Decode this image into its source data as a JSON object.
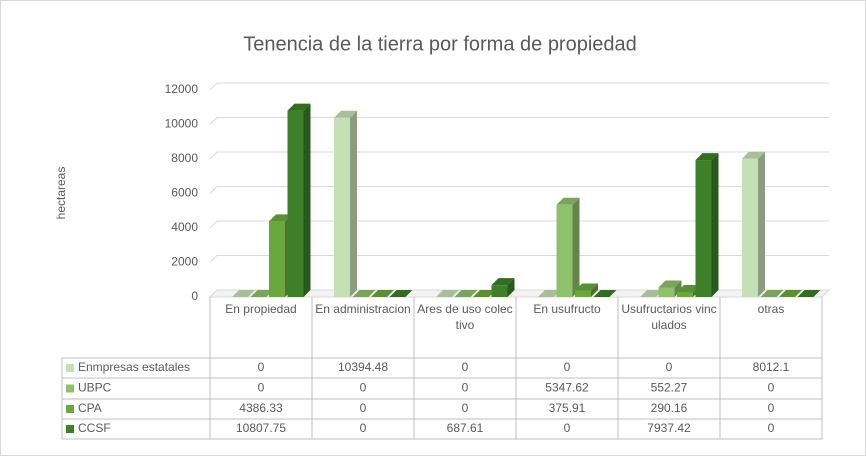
{
  "chart_data": {
    "type": "bar3d",
    "title": "Tenencia de la tierra por forma de propiedad",
    "y_label": "hectareas",
    "categories": [
      "En propiedad",
      "En administracion",
      "Ares de uso colectivo",
      "En usufructo",
      "Usufructarios vinculados",
      "otras"
    ],
    "series": [
      {
        "name": "Enmpresas estatales",
        "color": "#c5e0b4",
        "values": [
          0,
          10394.48,
          0,
          0,
          0,
          8012.1
        ]
      },
      {
        "name": "UBPC",
        "color": "#8fc06b",
        "values": [
          0,
          0,
          0,
          5347.62,
          552.27,
          0
        ]
      },
      {
        "name": "CPA",
        "color": "#6aa83e",
        "values": [
          4386.33,
          0,
          0,
          375.91,
          290.16,
          0
        ]
      },
      {
        "name": "CCSF",
        "color": "#3e7f2a",
        "values": [
          10807.75,
          0,
          687.61,
          0,
          7937.42,
          0
        ]
      }
    ],
    "ylim": [
      0,
      12000
    ],
    "yticks": [
      0,
      2000,
      4000,
      6000,
      8000,
      10000,
      12000
    ],
    "grid": true,
    "data_table": true
  }
}
